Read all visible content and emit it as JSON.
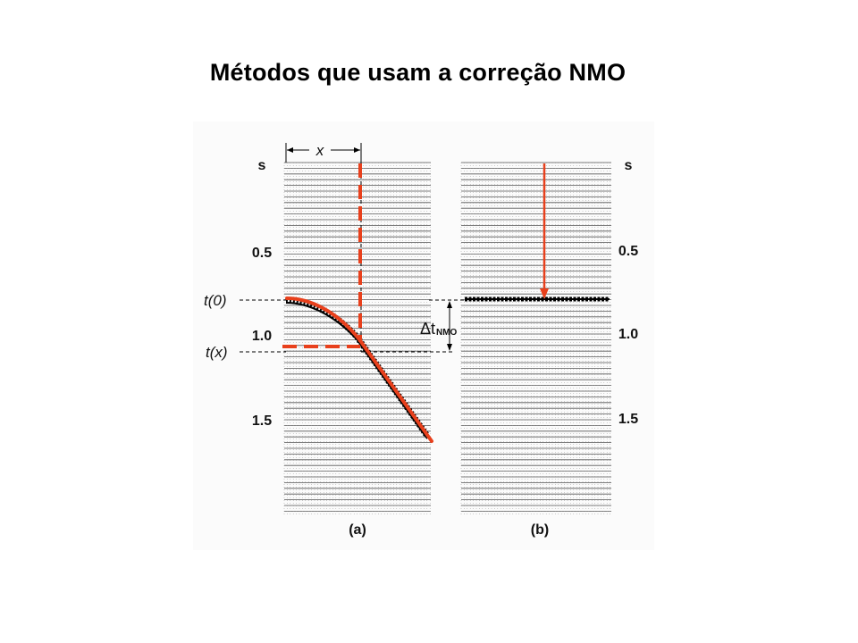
{
  "title": "Métodos que usam a correção NMO",
  "colors": {
    "highlight": "#e8401c",
    "trace": "#000000",
    "background": "#ffffff"
  },
  "panel_a": {
    "caption": "(a)",
    "offset_label": "x",
    "time_unit": "s",
    "time_ticks": [
      "0.5",
      "1.0",
      "1.5"
    ],
    "t0_label": "t(0)",
    "tx_label": "t(x)"
  },
  "panel_b": {
    "caption": "(b)",
    "time_unit": "s",
    "time_ticks": [
      "0.5",
      "1.0",
      "1.5"
    ]
  },
  "delta_label": {
    "symbol": "Δt",
    "subscript": "NMO"
  }
}
